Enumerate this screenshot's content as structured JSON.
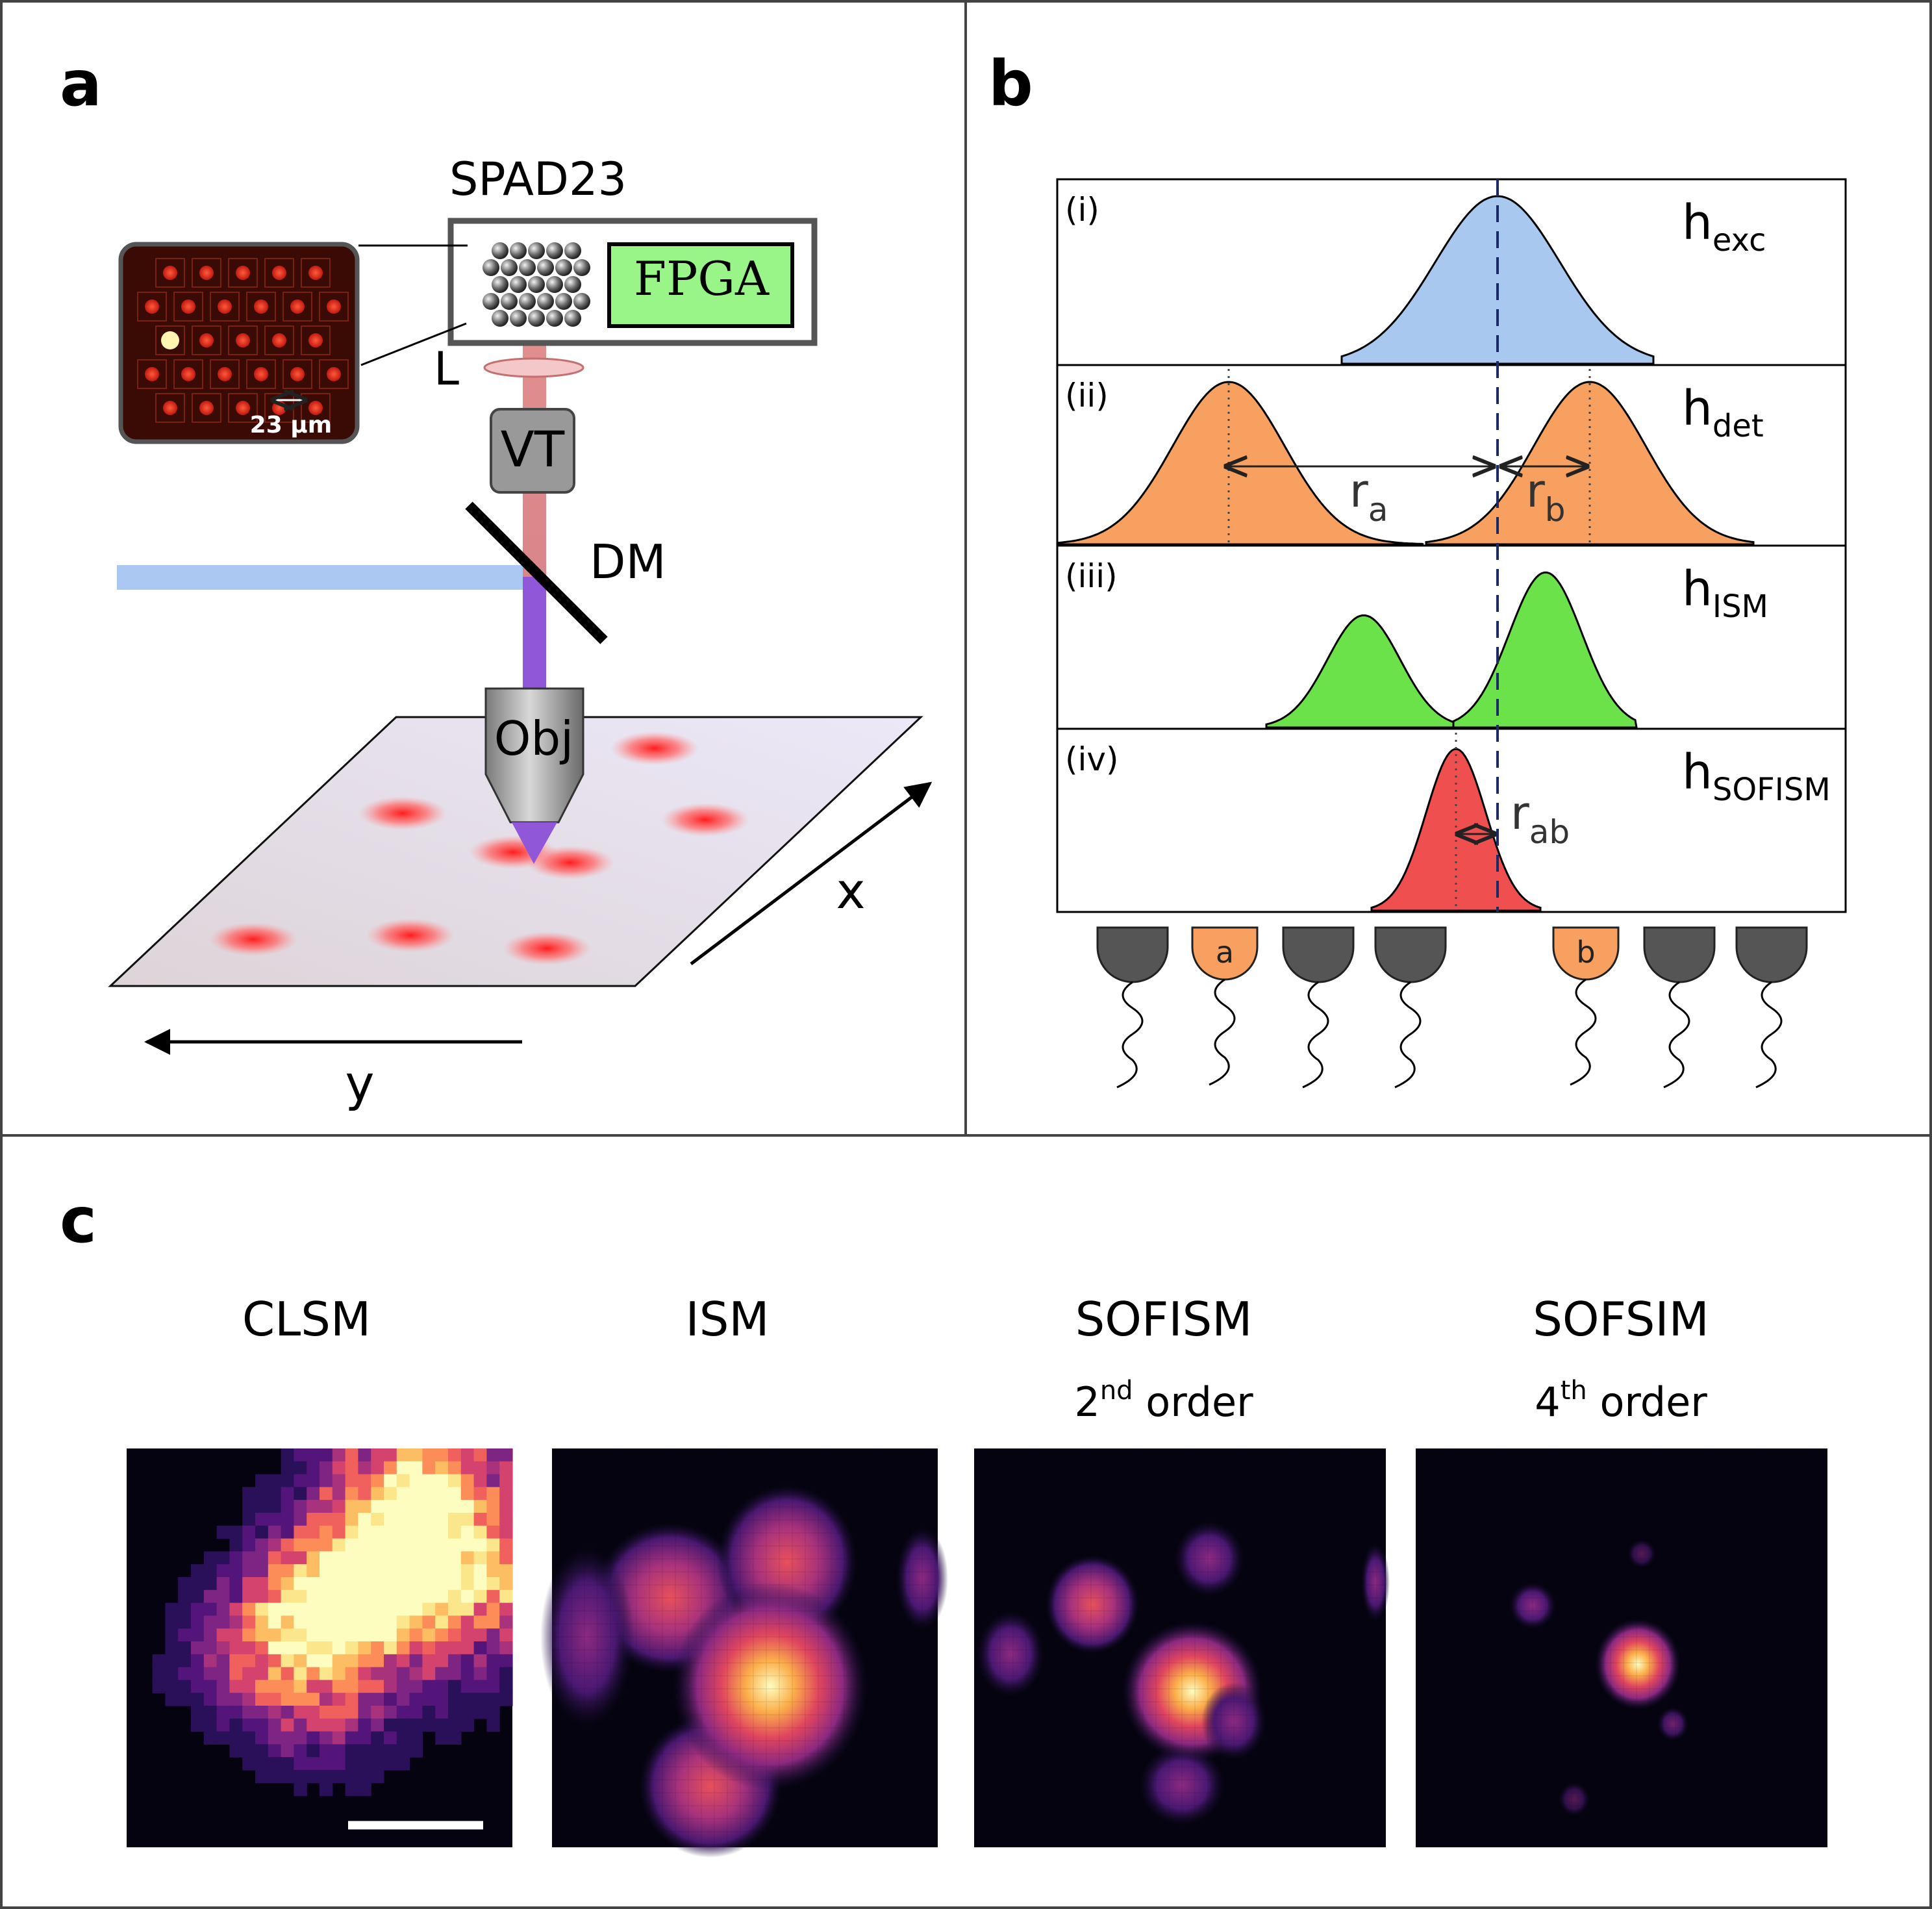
{
  "panels": {
    "a": {
      "letter": "a",
      "detector_title": "SPAD23",
      "fpga": "FPGA",
      "lens": "L",
      "vt": "VT",
      "dm": "DM",
      "obj": "Obj",
      "axis_x": "x",
      "axis_y": "y",
      "inset_scale": "23 µm"
    },
    "b": {
      "letter": "b",
      "rows": [
        {
          "roman": "(i)",
          "h_main": "h",
          "h_sub": "exc"
        },
        {
          "roman": "(ii)",
          "h_main": "h",
          "h_sub": "det"
        },
        {
          "roman": "(iii)",
          "h_main": "h",
          "h_sub": "ISM"
        },
        {
          "roman": "(iv)",
          "h_main": "h",
          "h_sub": "SOFISM"
        }
      ],
      "ra_main": "r",
      "ra_sub": "a",
      "rb_main": "r",
      "rb_sub": "b",
      "rab_main": "r",
      "rab_sub": "ab",
      "det_a": "a",
      "det_b": "b"
    },
    "c": {
      "letter": "c",
      "images": [
        {
          "title": "CLSM",
          "line2_num": "",
          "line2_sup": "",
          "line2_rest": ""
        },
        {
          "title": "ISM",
          "line2_num": "",
          "line2_sup": "",
          "line2_rest": ""
        },
        {
          "title": "SOFISM",
          "line2_num": "2",
          "line2_sup": "nd",
          "line2_rest": " order"
        },
        {
          "title": "SOFSIM",
          "line2_num": "4",
          "line2_sup": "th",
          "line2_rest": " order"
        }
      ]
    }
  },
  "colors": {
    "excitation": "#a9c8f0",
    "detection": "#f7a060",
    "ism": "#6be24a",
    "sofism": "#ef4f4f",
    "fpga": "#99f588",
    "beam_red": "#e28f8f",
    "beam_blue": "#aac8f2",
    "beam_violet": "#9057d8"
  }
}
